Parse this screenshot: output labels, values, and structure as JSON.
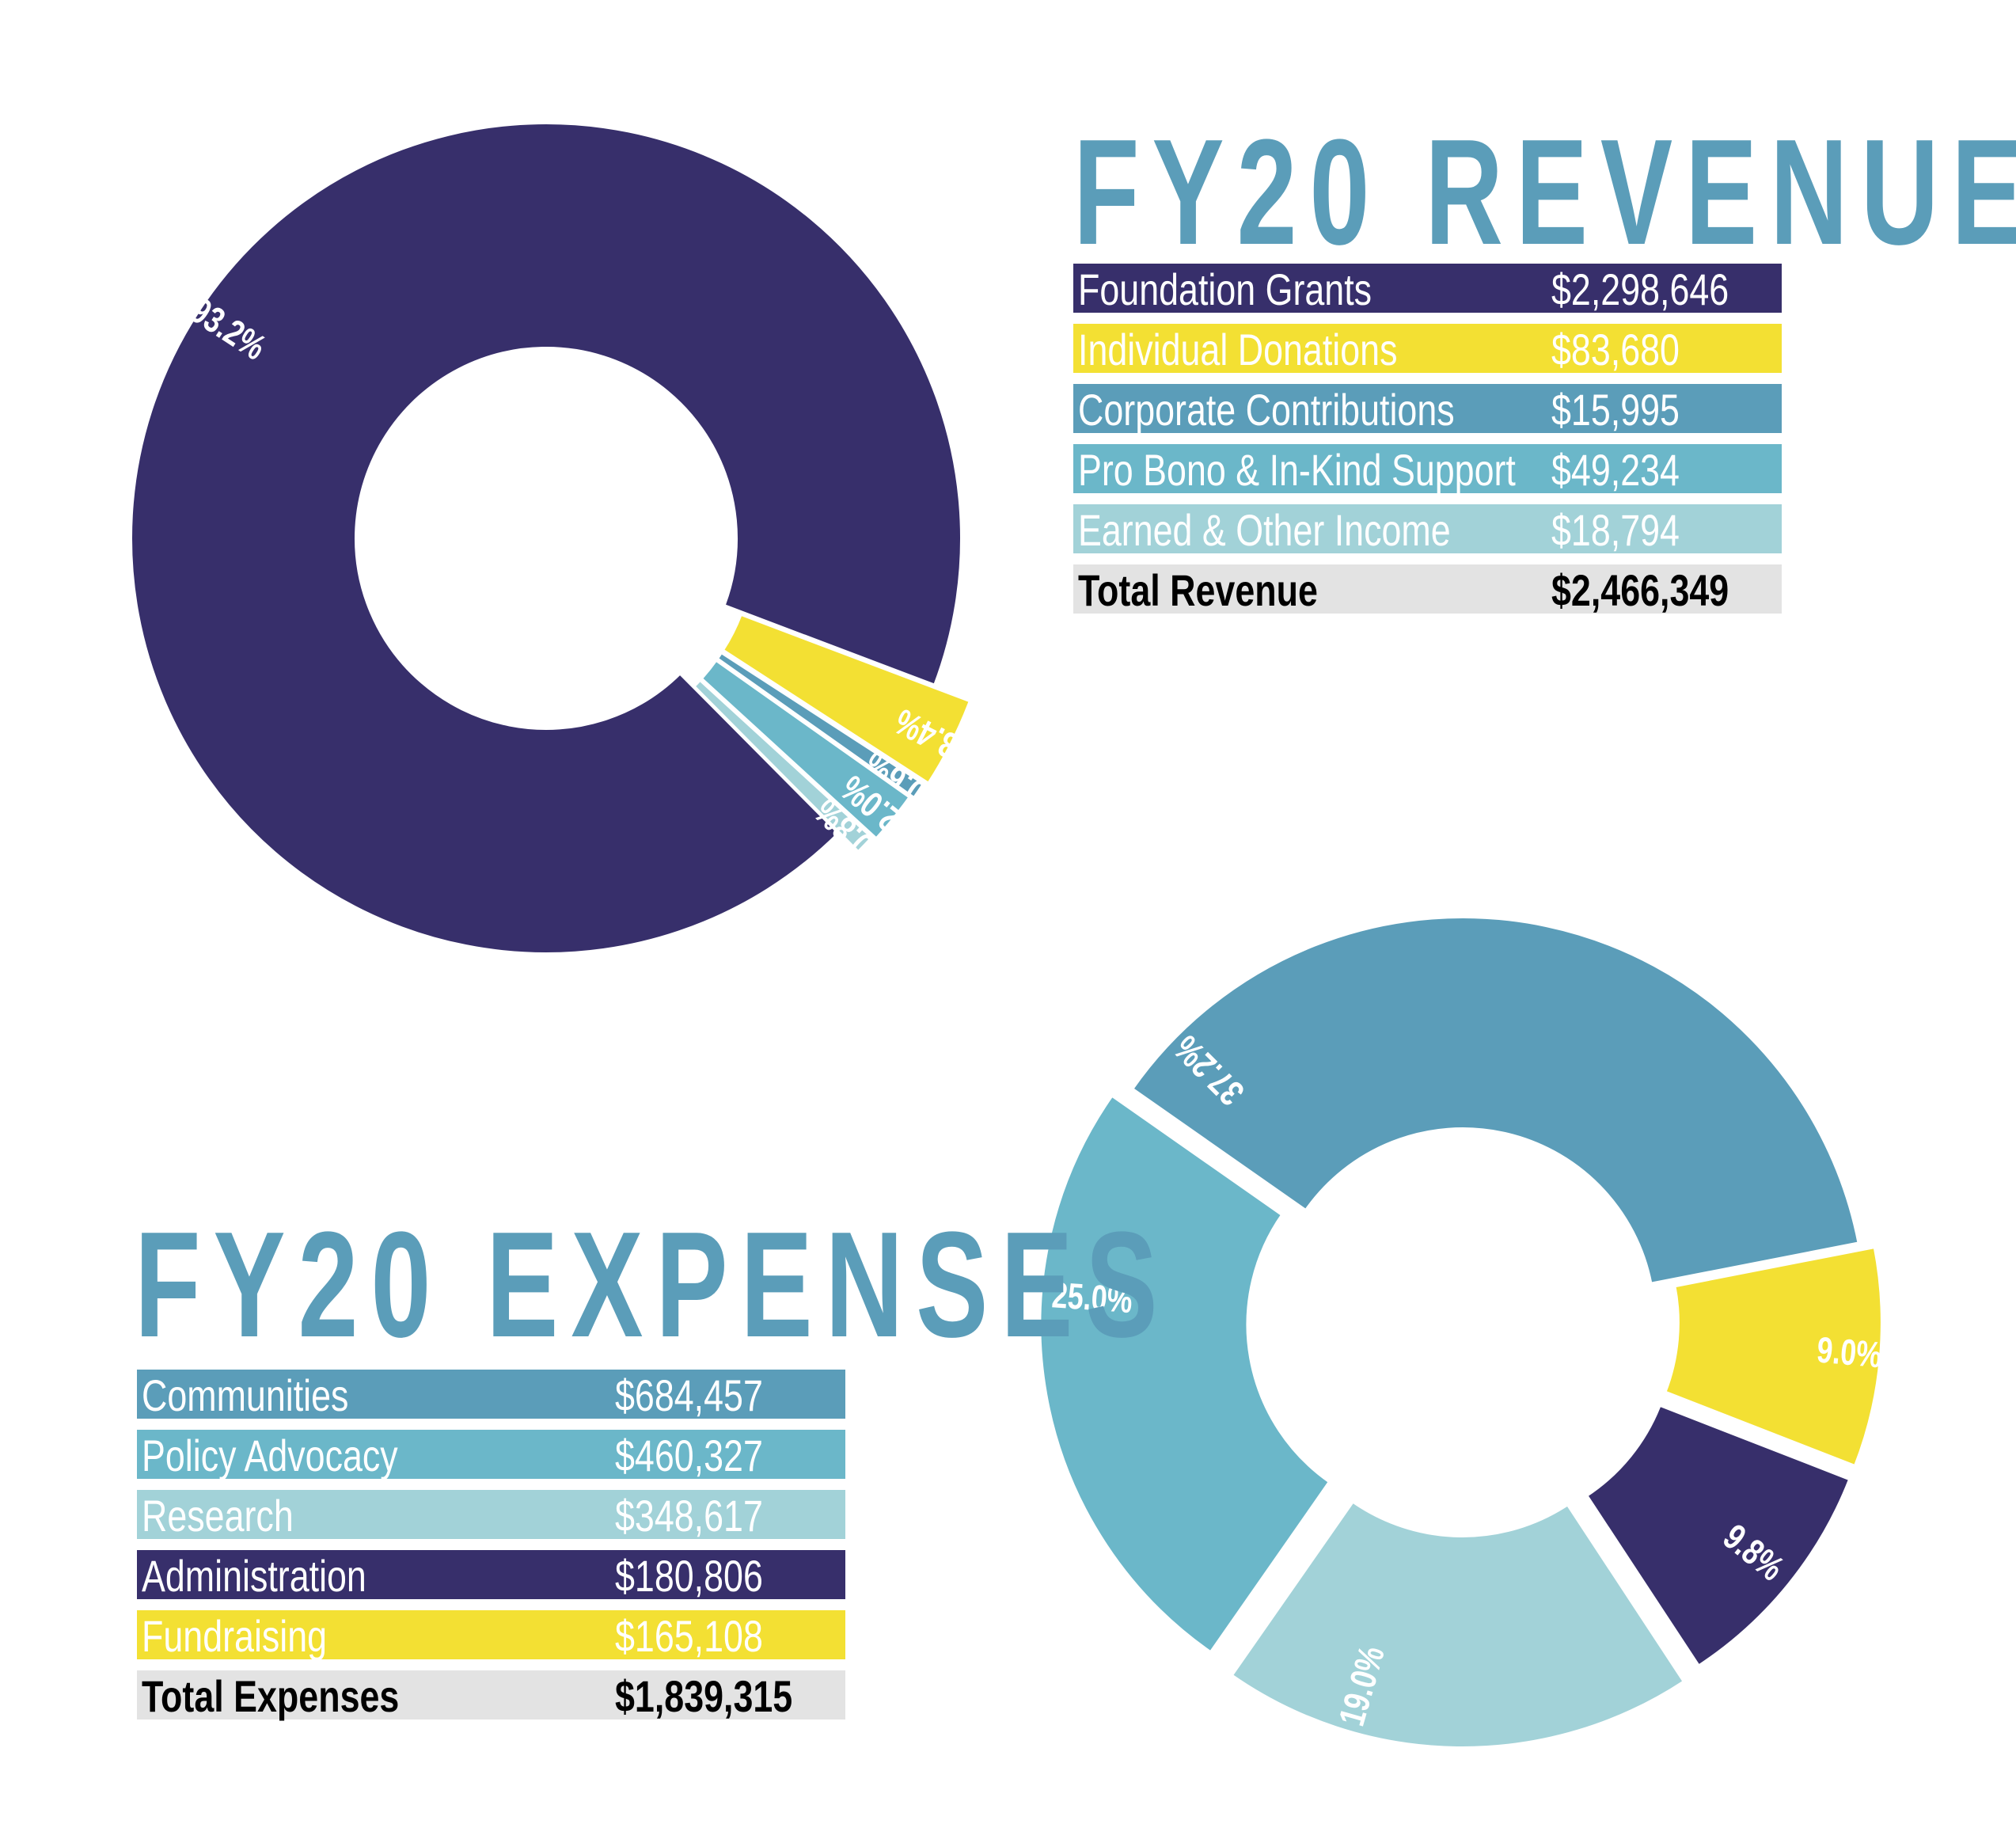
{
  "revenue": {
    "title": "FY20 REVENUE",
    "rows": [
      {
        "label": "Foundation Grants",
        "value": "$2,298,646",
        "bg": "#372f6b",
        "fg": "#ffffff"
      },
      {
        "label": "Individual Donations",
        "value": "$83,680",
        "bg": "#f3e033",
        "fg": "#ffffff"
      },
      {
        "label": "Corporate Contributions",
        "value": "$15,995",
        "bg": "#5b9db9",
        "fg": "#ffffff"
      },
      {
        "label": "Pro Bono & In-Kind Support",
        "value": "$49,234",
        "bg": "#6bb7c9",
        "fg": "#ffffff"
      },
      {
        "label": "Earned & Other Income",
        "value": "$18,794",
        "bg": "#a2d2d8",
        "fg": "#ffffff"
      }
    ],
    "total": {
      "label": "Total Revenue",
      "value": "$2,466,349"
    }
  },
  "expenses": {
    "title": "FY20 EXPENSES",
    "rows": [
      {
        "label": "Communities",
        "value": "$684,457",
        "bg": "#5b9db9",
        "fg": "#ffffff"
      },
      {
        "label": "Policy Advocacy",
        "value": "$460,327",
        "bg": "#6bb7c9",
        "fg": "#ffffff"
      },
      {
        "label": "Research",
        "value": "$348,617",
        "bg": "#a2d2d8",
        "fg": "#ffffff"
      },
      {
        "label": "Administration",
        "value": "$180,806",
        "bg": "#372f6b",
        "fg": "#ffffff"
      },
      {
        "label": "Fundraising",
        "value": "$165,108",
        "bg": "#f3e033",
        "fg": "#ffffff"
      }
    ],
    "total": {
      "label": "Total Expenses",
      "value": "$1,839,315"
    }
  },
  "chart_data": [
    {
      "type": "pie",
      "title": "FY20 REVENUE",
      "categories": [
        "Foundation Grants",
        "Individual Donations",
        "Corporate Contributions",
        "Pro Bono & In-Kind Support",
        "Earned & Other Income"
      ],
      "values": [
        2298646,
        83680,
        15995,
        49234,
        18794
      ],
      "percent_labels": [
        "93.2%",
        "3.4%",
        "0.6%",
        "2.0%",
        "0.8%"
      ],
      "colors": [
        "#372f6b",
        "#f3e033",
        "#5b9db9",
        "#6bb7c9",
        "#a2d2d8"
      ],
      "donut": true,
      "legend": "table to the right"
    },
    {
      "type": "pie",
      "title": "FY20 EXPENSES",
      "categories": [
        "Communities",
        "Fundraising",
        "Administration",
        "Research",
        "Policy Advocacy"
      ],
      "values": [
        684457,
        165108,
        180806,
        348617,
        460327
      ],
      "percent_labels": [
        "37.2%",
        "9.0%",
        "9.8%",
        "19.0%",
        "25.0%"
      ],
      "colors": [
        "#5b9db9",
        "#f3e033",
        "#372f6b",
        "#a2d2d8",
        "#6bb7c9"
      ],
      "donut": true,
      "legend": "table to the left"
    }
  ]
}
